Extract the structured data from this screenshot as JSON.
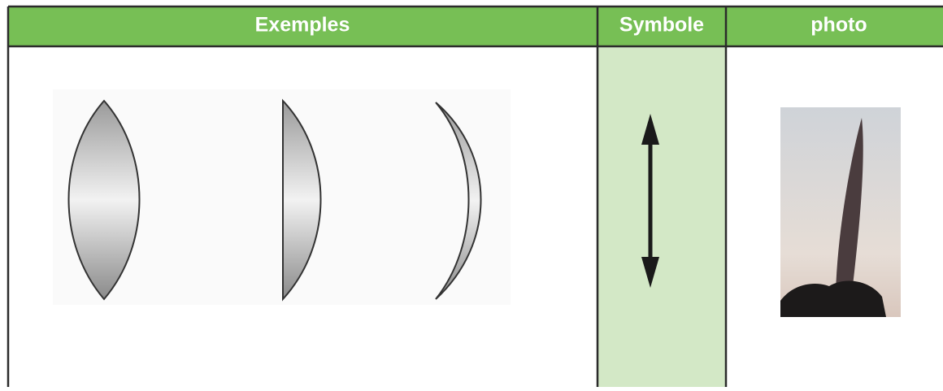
{
  "table": {
    "header": [
      "Exemples",
      "Symbole",
      "photo"
    ]
  }
}
